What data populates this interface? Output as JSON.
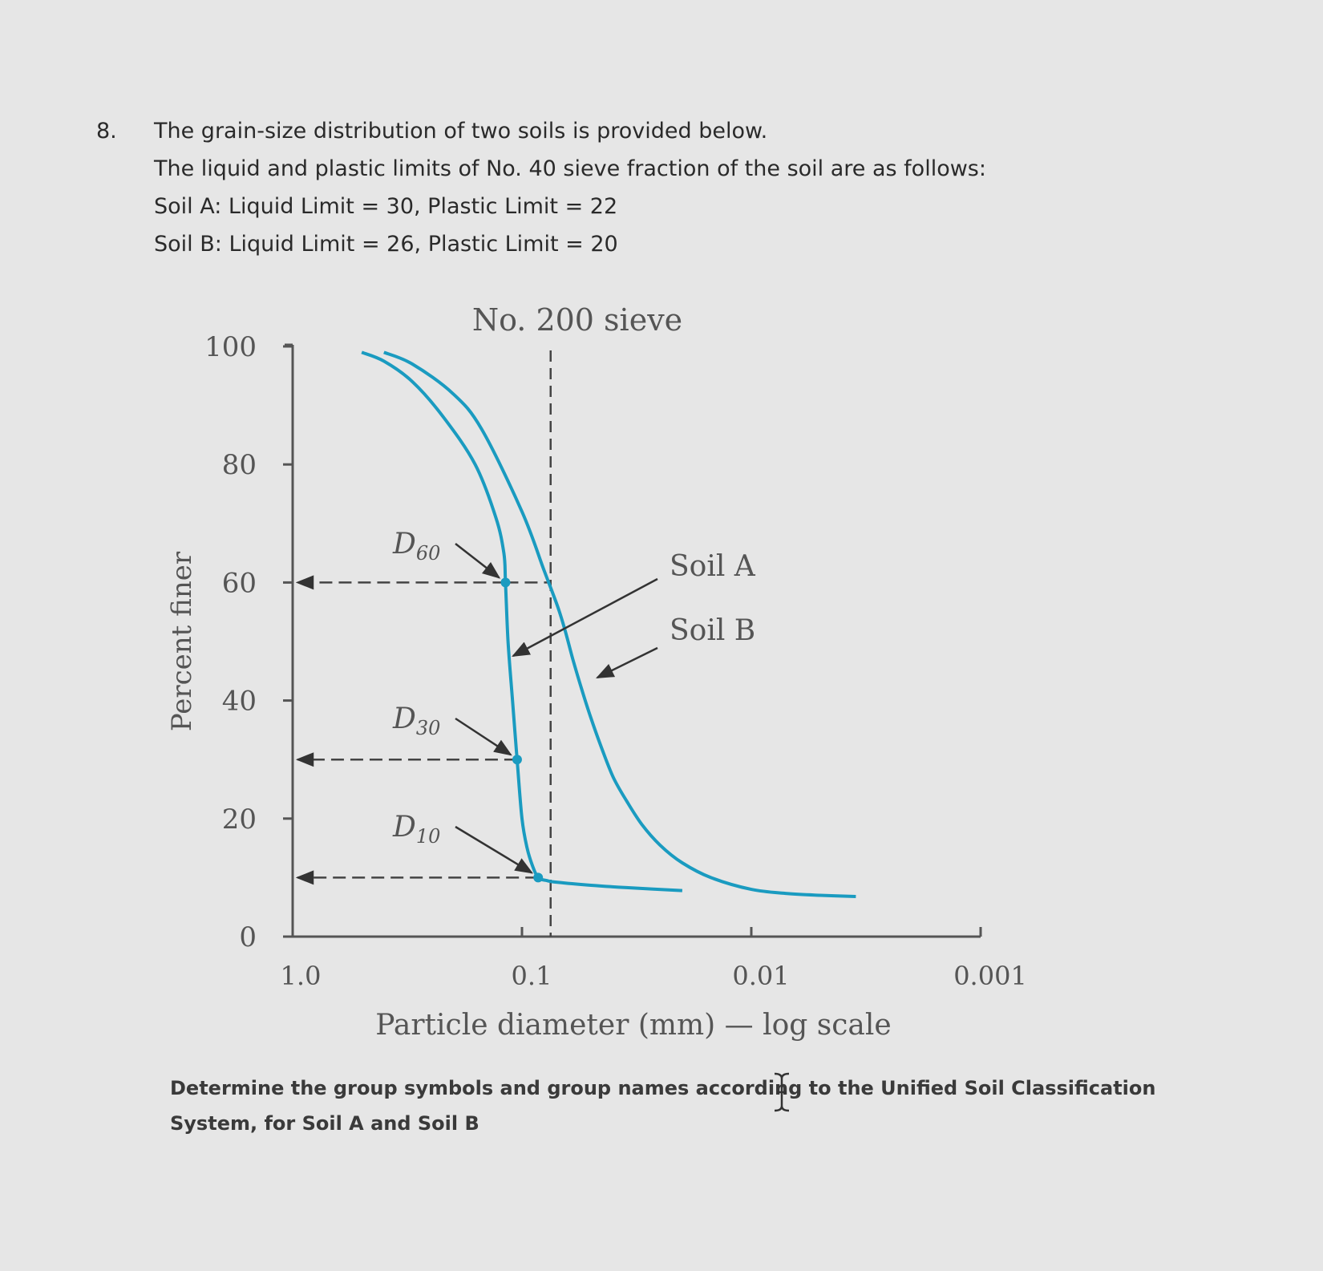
{
  "question": {
    "number": "8.",
    "lines": [
      "The grain-size distribution of two soils is provided below.",
      "The liquid and plastic limits of No. 40 sieve fraction of the soil are as follows:",
      "Soil A: Liquid Limit = 30, Plastic Limit = 22",
      "Soil B: Liquid Limit = 26, Plastic Limit = 20"
    ],
    "task_lines": [
      "Determine the group symbols and group names according to the Unified Soil Classification",
      "System, for Soil A and Soil B"
    ]
  },
  "chart_data": {
    "type": "line",
    "title": "",
    "xlabel": "Particle diameter (mm) — log scale",
    "ylabel": "Percent finer",
    "x_scale": "log",
    "x_reversed": true,
    "xlim": [
      1.0,
      0.001
    ],
    "ylim": [
      0,
      100
    ],
    "x_ticks": [
      1.0,
      0.1,
      0.01,
      0.001
    ],
    "x_tick_labels": [
      "1.0",
      "0.1",
      "0.01",
      "0.001"
    ],
    "y_ticks": [
      0,
      20,
      40,
      60,
      80,
      100
    ],
    "y_tick_labels": [
      "0",
      "20",
      "40",
      "60",
      "80",
      "100"
    ],
    "reference_line": {
      "x": 0.075,
      "label": "No. 200 sieve"
    },
    "series": [
      {
        "name": "Soil A",
        "color": "#1a9bc0",
        "x": [
          0.5,
          0.4,
          0.3,
          0.22,
          0.16,
          0.13,
          0.12,
          0.118,
          0.115,
          0.11,
          0.105,
          0.1,
          0.095,
          0.09,
          0.085,
          0.078,
          0.07,
          0.05,
          0.035,
          0.02
        ],
        "y": [
          99,
          97.5,
          94,
          88,
          80,
          71,
          65,
          60,
          50,
          40,
          30,
          20,
          15,
          12,
          10,
          9.5,
          9.2,
          8.7,
          8.3,
          7.8
        ]
      },
      {
        "name": "Soil B",
        "color": "#1a9bc0",
        "x": [
          0.4,
          0.3,
          0.2,
          0.15,
          0.1,
          0.08,
          0.07,
          0.065,
          0.06,
          0.055,
          0.05,
          0.045,
          0.04,
          0.035,
          0.03,
          0.025,
          0.02,
          0.015,
          0.01,
          0.007,
          0.005,
          0.0035
        ],
        "y": [
          99,
          97,
          92,
          86,
          72,
          62,
          56,
          52,
          47,
          42,
          37,
          32,
          27,
          23,
          19,
          15.5,
          12.5,
          10,
          8,
          7.3,
          7,
          6.8
        ]
      }
    ],
    "annotations": [
      {
        "label": "D",
        "sub": "60",
        "y": 60,
        "x": 0.118
      },
      {
        "label": "D",
        "sub": "30",
        "y": 30,
        "x": 0.105
      },
      {
        "label": "D",
        "sub": "10",
        "y": 10,
        "x": 0.085
      }
    ],
    "series_labels": [
      {
        "text": "Soil A"
      },
      {
        "text": "Soil B"
      }
    ],
    "grid": false
  }
}
